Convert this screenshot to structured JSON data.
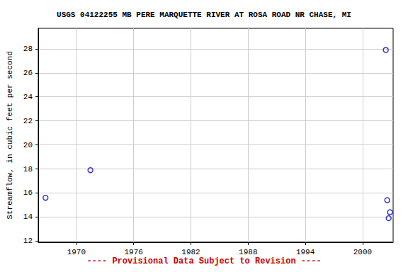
{
  "chart_data": {
    "type": "scatter",
    "title": "USGS 04122255 MB PERE MARQUETTE RIVER AT ROSA ROAD NR CHASE, MI",
    "y_label": "Streamflow, in cubic feet per second",
    "annotation": "---- Provisional Data Subject to Revision ----",
    "x": [
      1966.76,
      1971.47,
      2002.43,
      2002.58,
      2002.73,
      2002.87
    ],
    "values": [
      15.6,
      17.9,
      27.9,
      15.4,
      13.9,
      14.4
    ],
    "color": "#0000cc",
    "marker": "open_circle",
    "xlim": [
      1966.0,
      2003.2
    ],
    "xticks": [
      1970,
      1976,
      1982,
      1988,
      1994,
      2000
    ],
    "ylim": [
      11.9,
      29.7
    ],
    "yticks": [
      12,
      14,
      16,
      18,
      20,
      22,
      24,
      26,
      28
    ],
    "grid": true
  }
}
